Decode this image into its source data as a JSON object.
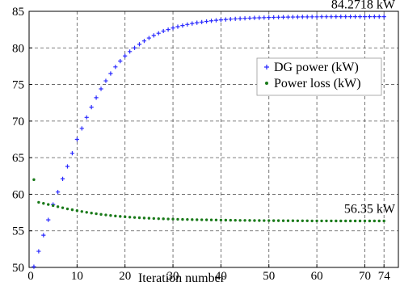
{
  "chart_data": {
    "type": "scatter",
    "title": "",
    "xlabel": "Iteration number",
    "ylabel": "",
    "xlim": [
      0,
      77
    ],
    "ylim": [
      50,
      85
    ],
    "x_ticks": [
      0,
      10,
      20,
      30,
      40,
      50,
      60,
      70,
      74
    ],
    "y_ticks": [
      50,
      55,
      60,
      65,
      70,
      75,
      80,
      85
    ],
    "grid": true,
    "legend_position": "right",
    "series": [
      {
        "name": "DG power (kW)",
        "color": "#2a2aff",
        "marker": "+",
        "final_value": 84.2718,
        "x": [
          1,
          2,
          3,
          4,
          5,
          6,
          7,
          8,
          9,
          10,
          11,
          12,
          13,
          14,
          15,
          16,
          17,
          18,
          19,
          20,
          21,
          22,
          23,
          24,
          25,
          26,
          27,
          28,
          29,
          30,
          31,
          32,
          33,
          34,
          35,
          36,
          37,
          38,
          39,
          40,
          41,
          42,
          43,
          44,
          45,
          46,
          47,
          48,
          49,
          50,
          51,
          52,
          53,
          54,
          55,
          56,
          57,
          58,
          59,
          60,
          61,
          62,
          63,
          64,
          65,
          66,
          67,
          68,
          69,
          70,
          71,
          72,
          73,
          74
        ],
        "values": [
          50.1,
          52.2,
          54.4,
          56.5,
          58.6,
          60.3,
          62.1,
          63.8,
          65.6,
          67.5,
          69.0,
          70.5,
          71.9,
          73.2,
          74.4,
          75.5,
          76.5,
          77.4,
          78.2,
          78.9,
          79.5,
          80.0,
          80.5,
          80.95,
          81.35,
          81.7,
          82.0,
          82.3,
          82.5,
          82.72,
          82.9,
          83.05,
          83.2,
          83.33,
          83.44,
          83.53,
          83.62,
          83.7,
          83.77,
          83.83,
          83.88,
          83.93,
          83.97,
          84.01,
          84.04,
          84.07,
          84.1,
          84.12,
          84.14,
          84.16,
          84.18,
          84.19,
          84.2,
          84.21,
          84.22,
          84.23,
          84.24,
          84.24,
          84.25,
          84.25,
          84.26,
          84.26,
          84.26,
          84.27,
          84.27,
          84.27,
          84.27,
          84.27,
          84.27,
          84.27,
          84.27,
          84.27,
          84.27,
          84.2718
        ]
      },
      {
        "name": "Power loss (kW)",
        "color": "#1a7a1a",
        "marker": ".",
        "final_value": 56.35,
        "x": [
          1,
          2,
          3,
          4,
          5,
          6,
          7,
          8,
          9,
          10,
          11,
          12,
          13,
          14,
          15,
          16,
          17,
          18,
          19,
          20,
          21,
          22,
          23,
          24,
          25,
          26,
          27,
          28,
          29,
          30,
          31,
          32,
          33,
          34,
          35,
          36,
          37,
          38,
          39,
          40,
          41,
          42,
          43,
          44,
          45,
          46,
          47,
          48,
          49,
          50,
          51,
          52,
          53,
          54,
          55,
          56,
          57,
          58,
          59,
          60,
          61,
          62,
          63,
          64,
          65,
          66,
          67,
          68,
          69,
          70,
          71,
          72,
          73,
          74
        ],
        "values": [
          62.0,
          58.9,
          58.75,
          58.6,
          58.45,
          58.3,
          58.15,
          58.0,
          57.88,
          57.76,
          57.64,
          57.53,
          57.43,
          57.34,
          57.25,
          57.17,
          57.1,
          57.03,
          56.97,
          56.92,
          56.87,
          56.83,
          56.79,
          56.75,
          56.72,
          56.69,
          56.66,
          56.64,
          56.62,
          56.6,
          56.58,
          56.56,
          56.55,
          56.53,
          56.52,
          56.51,
          56.5,
          56.49,
          56.48,
          56.47,
          56.46,
          56.45,
          56.44,
          56.43,
          56.43,
          56.42,
          56.41,
          56.41,
          56.4,
          56.4,
          56.39,
          56.39,
          56.38,
          56.38,
          56.38,
          56.37,
          56.37,
          56.37,
          56.36,
          56.36,
          56.36,
          56.36,
          56.36,
          56.35,
          56.35,
          56.35,
          56.35,
          56.35,
          56.35,
          56.35,
          56.35,
          56.35,
          56.35,
          56.35
        ]
      }
    ],
    "annotations": [
      {
        "text": "84.2718 kW",
        "series": 0
      },
      {
        "text": "56.35 kW",
        "series": 1
      }
    ]
  }
}
